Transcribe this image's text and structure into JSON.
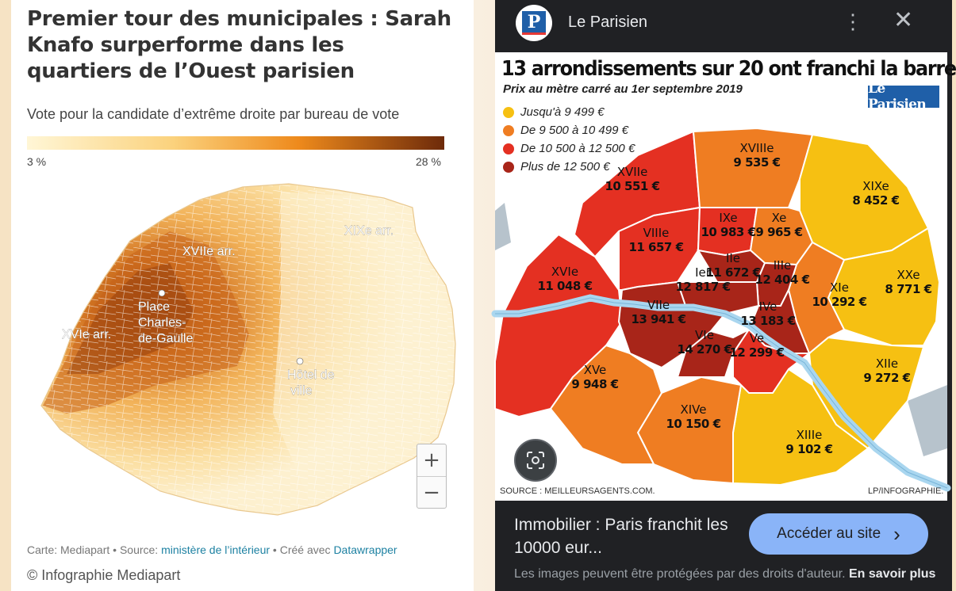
{
  "left": {
    "title": "Premier tour des municipales : Sarah Knafo surperforme dans les quartiers de l’Ouest parisien",
    "subtitle": "Vote pour la candidate d’extrême droite par bureau de vote",
    "legend": {
      "min": "3 %",
      "max": "28 %",
      "color_low": "#fff4cf",
      "color_high": "#7a2e08"
    },
    "labels": {
      "xvii": "XVIIe arr.",
      "xix": "XIXe arr.",
      "xvi": "XVIe arr.",
      "place_line1": "Place",
      "place_line2": "Charles-",
      "place_line3": "de-Gaulle",
      "hotel_line1": "Hôtel de",
      "hotel_line2": "ville"
    },
    "zoom_in": "+",
    "zoom_out": "−",
    "credits": {
      "prefix": "Carte: Mediapart • Source: ",
      "source_link": "ministère de l’intérieur",
      "middle": " • Créé avec ",
      "tool_link": "Datawrapper"
    },
    "copyright": "© Infographie Mediapart"
  },
  "right": {
    "site_name": "Le Parisien",
    "logo_letter": "P",
    "more_icon": "⋮",
    "close_icon": "✕",
    "headline": "13 arrondissements sur 20 ont franchi la barre",
    "subhead": "Prix au mètre carré au 1er septembre 2019",
    "brand_logo": "Le Parisien",
    "legend": [
      {
        "label": "Jusqu'à 9 499 €",
        "color": "#f6c012"
      },
      {
        "label": "De 9 500 à 10 499 €",
        "color": "#ef7d22"
      },
      {
        "label": "De 10 500 à 12 500 €",
        "color": "#e43022"
      },
      {
        "label": "Plus de 12 500 €",
        "color": "#a82519"
      }
    ],
    "arrondissements": [
      {
        "num": "Ier",
        "price": "12 817 €"
      },
      {
        "num": "IIe",
        "price": "11 672 €"
      },
      {
        "num": "IIIe",
        "price": "12 404 €"
      },
      {
        "num": "IVe",
        "price": "13 183 €"
      },
      {
        "num": "Ve",
        "price": "12 299 €"
      },
      {
        "num": "VIe",
        "price": "14 270 €"
      },
      {
        "num": "VIIe",
        "price": "13 941 €"
      },
      {
        "num": "VIIIe",
        "price": "11 657 €"
      },
      {
        "num": "IXe",
        "price": "10 983 €"
      },
      {
        "num": "Xe",
        "price": "9 965 €"
      },
      {
        "num": "XIe",
        "price": "10 292 €"
      },
      {
        "num": "XIIe",
        "price": "9 272 €"
      },
      {
        "num": "XIIIe",
        "price": "9 102 €"
      },
      {
        "num": "XIVe",
        "price": "10 150 €"
      },
      {
        "num": "XVe",
        "price": "9 948 €"
      },
      {
        "num": "XVIe",
        "price": "11 048 €"
      },
      {
        "num": "XVIIe",
        "price": "10 551 €"
      },
      {
        "num": "XVIIIe",
        "price": "9 535 €"
      },
      {
        "num": "XIXe",
        "price": "8 452 €"
      },
      {
        "num": "XXe",
        "price": "8 771 €"
      }
    ],
    "source": "SOURCE : MEILLEURSAGENTS.COM.",
    "credit": "LP/INFOGRAPHIE.",
    "caption": "Immobilier : Paris franchit les 10000 eur...",
    "visit_button": "Accéder au site",
    "visit_arrow": "›",
    "notice": "Les images peuvent être protégées par des droits d'auteur.",
    "notice_more": "En savoir plus"
  }
}
